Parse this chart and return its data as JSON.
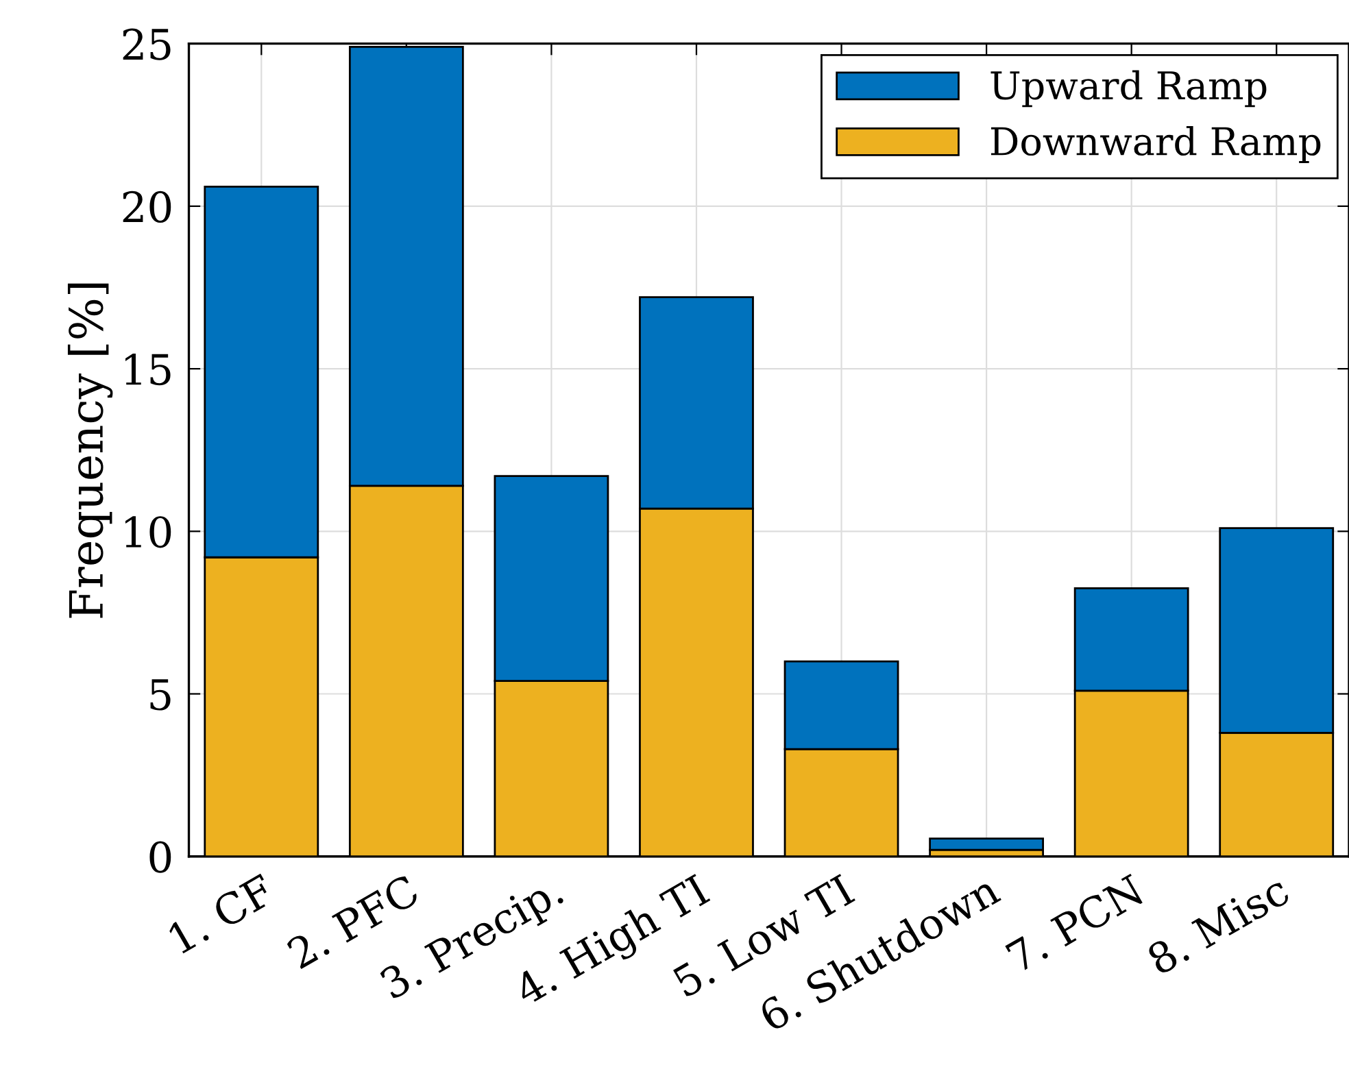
{
  "chart_data": {
    "type": "bar",
    "stacked": true,
    "ylabel": "Frequency [%]",
    "categories": [
      "1. CF",
      "2. PFC",
      "3. Precip.",
      "4. High TI",
      "5. Low TI",
      "6. Shutdown",
      "7. PCN",
      "8. Misc"
    ],
    "series": [
      {
        "name": "Downward Ramp",
        "color": "#edb120",
        "values": [
          9.2,
          11.4,
          5.4,
          10.7,
          3.3,
          0.2,
          5.1,
          3.8
        ]
      },
      {
        "name": "Upward Ramp",
        "color": "#0072bd",
        "values": [
          11.4,
          13.5,
          6.3,
          6.5,
          2.7,
          0.35,
          3.15,
          6.3
        ]
      }
    ],
    "ylim": [
      0,
      25
    ],
    "yticks": [
      0,
      5,
      10,
      15,
      20,
      25
    ],
    "grid": true,
    "legend": "top right"
  }
}
